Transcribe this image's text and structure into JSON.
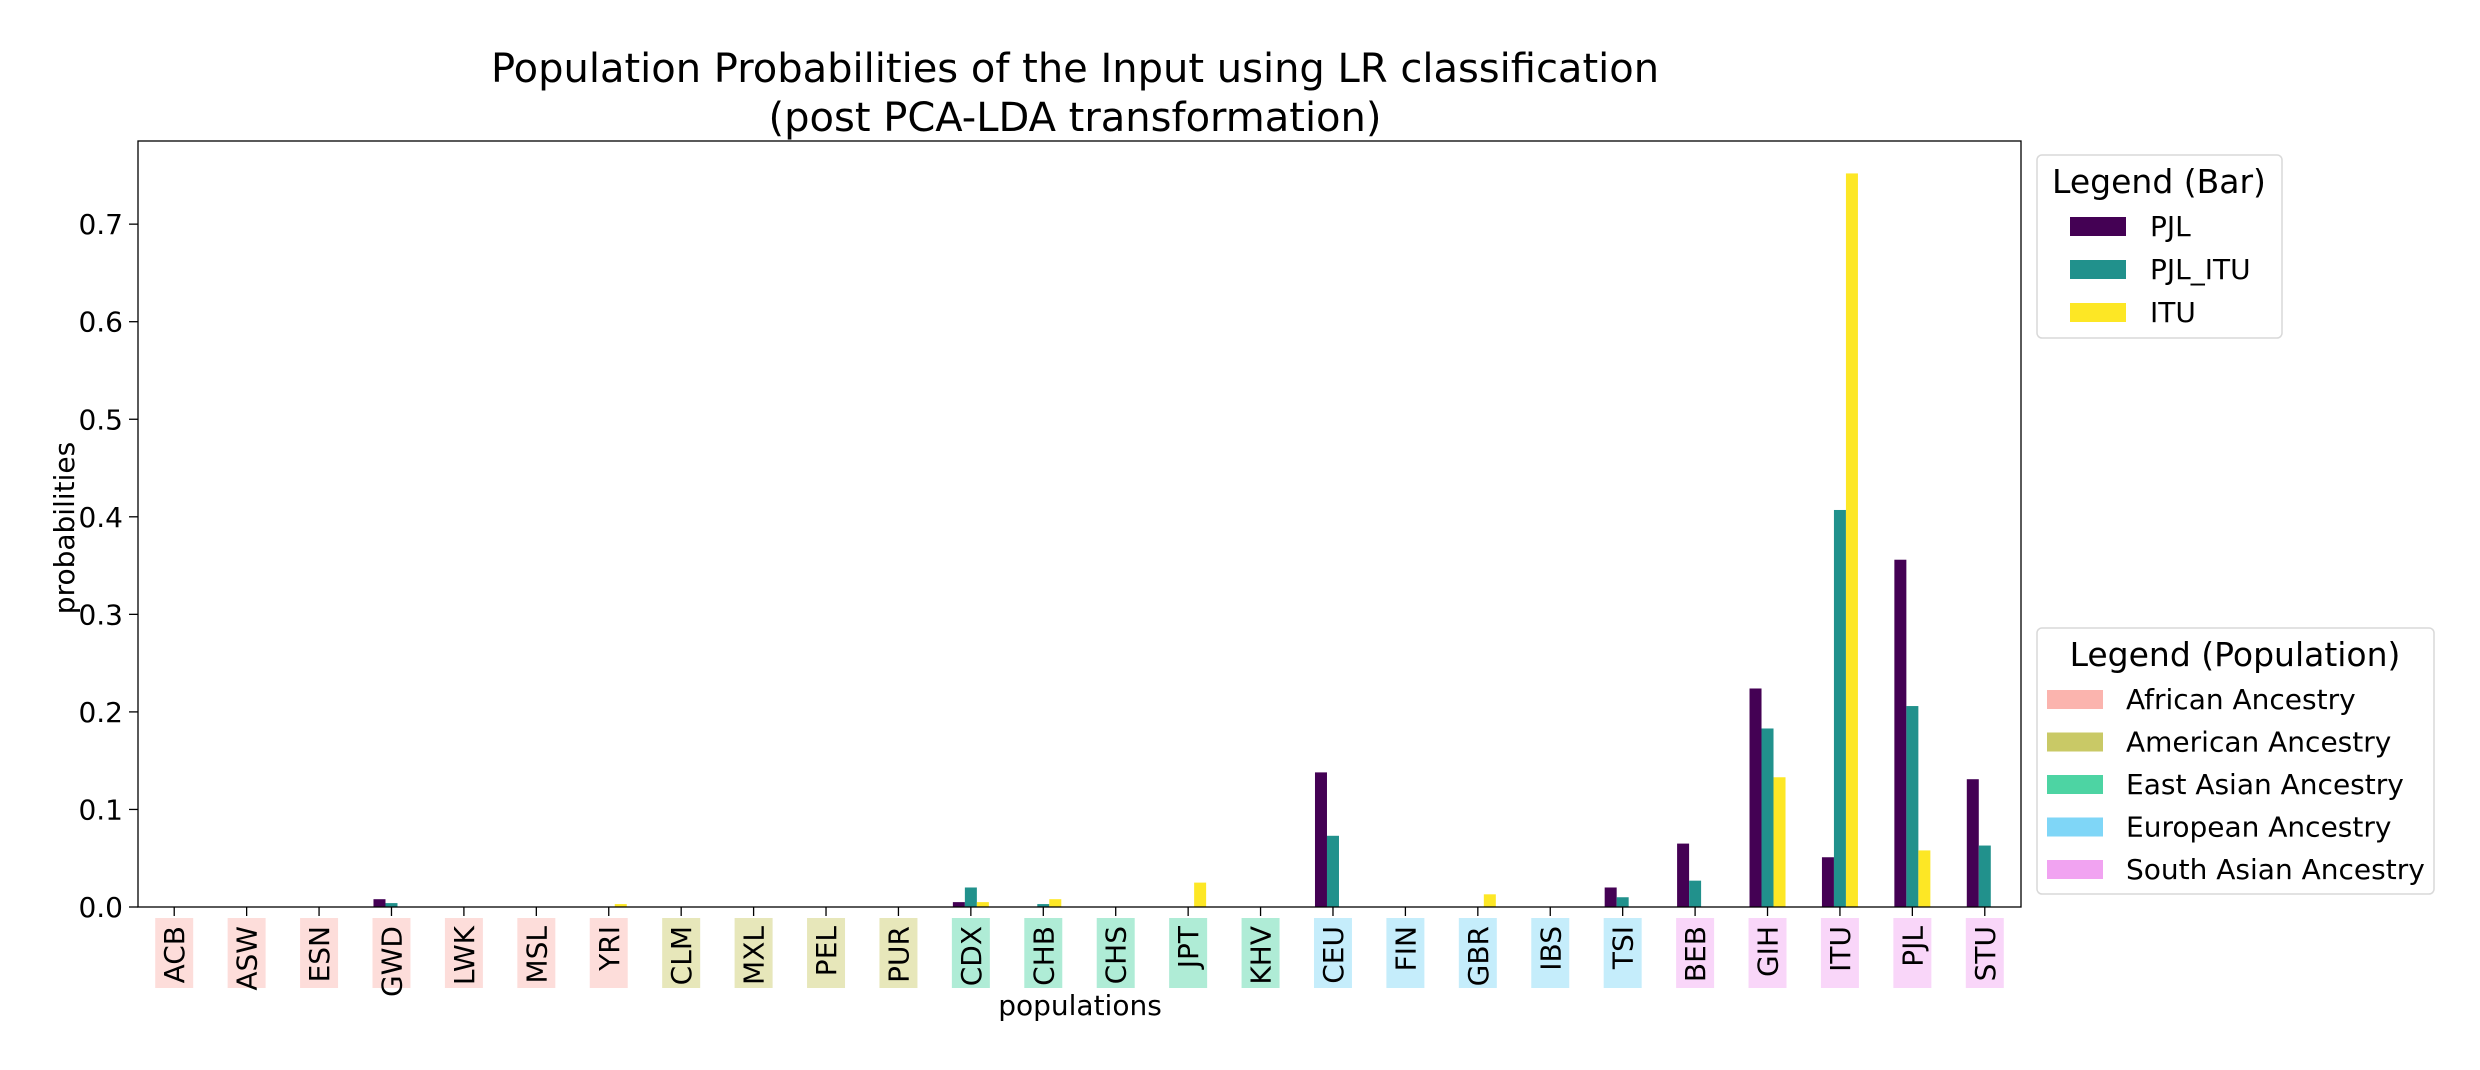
{
  "chart_data": {
    "type": "bar",
    "title_line1": "Population Probabilities of the Input using LR classification",
    "title_line2": "(post PCA-LDA transformation)",
    "xlabel": "populations",
    "ylabel": "probabilities",
    "ylim": [
      0,
      0.78
    ],
    "yticks": [
      "0.0",
      "0.1",
      "0.2",
      "0.3",
      "0.4",
      "0.5",
      "0.6",
      "0.7"
    ],
    "grid": false,
    "categories": [
      "ACB",
      "ASW",
      "ESN",
      "GWD",
      "LWK",
      "MSL",
      "YRI",
      "CLM",
      "MXL",
      "PEL",
      "PUR",
      "CDX",
      "CHB",
      "CHS",
      "JPT",
      "KHV",
      "CEU",
      "FIN",
      "GBR",
      "IBS",
      "TSI",
      "BEB",
      "GIH",
      "ITU",
      "PJL",
      "STU"
    ],
    "category_groups": [
      "African Ancestry",
      "African Ancestry",
      "African Ancestry",
      "African Ancestry",
      "African Ancestry",
      "African Ancestry",
      "African Ancestry",
      "American Ancestry",
      "American Ancestry",
      "American Ancestry",
      "American Ancestry",
      "East Asian Ancestry",
      "East Asian Ancestry",
      "East Asian Ancestry",
      "East Asian Ancestry",
      "East Asian Ancestry",
      "European Ancestry",
      "European Ancestry",
      "European Ancestry",
      "European Ancestry",
      "European Ancestry",
      "South Asian Ancestry",
      "South Asian Ancestry",
      "South Asian Ancestry",
      "South Asian Ancestry",
      "South Asian Ancestry"
    ],
    "series": [
      {
        "name": "PJL",
        "color": "#440154",
        "values": [
          0,
          0,
          0,
          0.008,
          0,
          0,
          0,
          0,
          0,
          0,
          0,
          0.005,
          0,
          0,
          0,
          0,
          0.138,
          0,
          0,
          0,
          0.02,
          0.065,
          0.224,
          0.051,
          0.356,
          0.131
        ]
      },
      {
        "name": "PJL_ITU",
        "color": "#21918c",
        "values": [
          0,
          0,
          0,
          0.004,
          0,
          0,
          0,
          0,
          0,
          0,
          0,
          0.02,
          0.003,
          0,
          0,
          0,
          0.073,
          0,
          0,
          0,
          0.01,
          0.027,
          0.183,
          0.407,
          0.206,
          0.063
        ]
      },
      {
        "name": "ITU",
        "color": "#fde725",
        "values": [
          0,
          0,
          0,
          0,
          0,
          0,
          0.003,
          0,
          0,
          0,
          0,
          0.005,
          0.008,
          0,
          0.025,
          0,
          0,
          0,
          0.013,
          0,
          0,
          0,
          0.133,
          0.752,
          0.058,
          0
        ]
      }
    ],
    "legend_bar": {
      "title": "Legend (Bar)",
      "placement": "top-right-outside"
    },
    "legend_population": {
      "title": "Legend (Population)",
      "placement": "bottom-right-outside",
      "items": [
        {
          "name": "African Ancestry",
          "color": "#fbb4ae"
        },
        {
          "name": "American Ancestry",
          "color": "#c9c966"
        },
        {
          "name": "East Asian Ancestry",
          "color": "#4dd4a3"
        },
        {
          "name": "European Ancestry",
          "color": "#7fd6f7"
        },
        {
          "name": "South Asian Ancestry",
          "color": "#f1a3f1"
        }
      ]
    }
  }
}
